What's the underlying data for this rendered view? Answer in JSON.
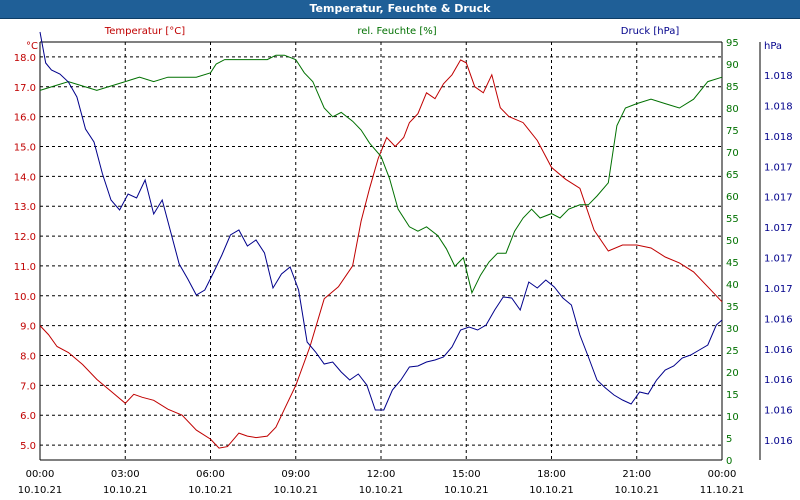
{
  "window": {
    "title": "Temperatur, Feuchte & Druck"
  },
  "chart_data": {
    "type": "line",
    "grid": true,
    "x_ticks": [
      {
        "time": "00:00",
        "date": "10.10.21"
      },
      {
        "time": "03:00",
        "date": "10.10.21"
      },
      {
        "time": "06:00",
        "date": "10.10.21"
      },
      {
        "time": "09:00",
        "date": "10.10.21"
      },
      {
        "time": "12:00",
        "date": "10.10.21"
      },
      {
        "time": "15:00",
        "date": "10.10.21"
      },
      {
        "time": "18:00",
        "date": "10.10.21"
      },
      {
        "time": "21:00",
        "date": "10.10.21"
      },
      {
        "time": "00:00",
        "date": "11.10.21"
      }
    ],
    "xlim_hours": [
      0,
      24
    ],
    "axes": {
      "temperature": {
        "unit": "°C",
        "ylim": [
          4.5,
          18.5
        ],
        "ticks": [
          "5.0",
          "6.0",
          "7.0",
          "8.0",
          "9.0",
          "10.0",
          "11.0",
          "12.0",
          "13.0",
          "14.0",
          "15.0",
          "16.0",
          "17.0",
          "18.0"
        ],
        "tick_values": [
          5,
          6,
          7,
          8,
          9,
          10,
          11,
          12,
          13,
          14,
          15,
          16,
          17,
          18
        ]
      },
      "humidity": {
        "unit": "%",
        "ylim": [
          0,
          95
        ],
        "ticks": [
          "0",
          "5",
          "10",
          "15",
          "20",
          "25",
          "30",
          "35",
          "40",
          "45",
          "50",
          "55",
          "60",
          "65",
          "70",
          "75",
          "80",
          "85",
          "90",
          "95"
        ],
        "tick_values": [
          0,
          5,
          10,
          15,
          20,
          25,
          30,
          35,
          40,
          45,
          50,
          55,
          60,
          65,
          70,
          75,
          80,
          85,
          90,
          95
        ]
      },
      "pressure": {
        "unit": "hPa",
        "ticks": [
          "1.018",
          "1.018",
          "1.018",
          "1.017",
          "1.017",
          "1.017",
          "1.017",
          "1.017",
          "1.016",
          "1.016",
          "1.016",
          "1.016",
          "1.016"
        ]
      }
    },
    "series": [
      {
        "name": "Temperatur [°C]",
        "axis": "temperature",
        "color": "#c00000",
        "x": [
          0,
          0.3,
          0.6,
          1.0,
          1.5,
          2.0,
          2.5,
          3.0,
          3.3,
          3.6,
          4.0,
          4.5,
          5.0,
          5.5,
          6.0,
          6.3,
          6.6,
          7.0,
          7.3,
          7.6,
          8.0,
          8.3,
          8.6,
          9.0,
          9.5,
          10.0,
          10.5,
          11.0,
          11.3,
          11.6,
          11.9,
          12.2,
          12.5,
          12.8,
          13.0,
          13.3,
          13.6,
          13.9,
          14.2,
          14.5,
          14.8,
          15.0,
          15.3,
          15.6,
          15.9,
          16.2,
          16.5,
          17.0,
          17.5,
          18.0,
          18.5,
          19.0,
          19.5,
          20.0,
          20.5,
          21.0,
          21.5,
          22.0,
          22.5,
          23.0,
          23.5,
          24.0
        ],
        "values": [
          9.0,
          8.7,
          8.3,
          8.1,
          7.7,
          7.2,
          6.8,
          6.4,
          6.7,
          6.6,
          6.5,
          6.2,
          6.0,
          5.5,
          5.2,
          4.9,
          4.95,
          5.4,
          5.3,
          5.25,
          5.3,
          5.6,
          6.2,
          7.0,
          8.3,
          9.9,
          10.3,
          11.0,
          12.5,
          13.6,
          14.6,
          15.3,
          15.0,
          15.3,
          15.8,
          16.1,
          16.8,
          16.6,
          17.1,
          17.4,
          17.9,
          17.8,
          17.0,
          16.8,
          17.4,
          16.3,
          16.0,
          15.8,
          15.2,
          14.3,
          13.9,
          13.6,
          12.2,
          11.5,
          11.7,
          11.7,
          11.6,
          11.3,
          11.1,
          10.8,
          10.3,
          9.8
        ]
      },
      {
        "name": "rel. Feuchte [%]",
        "axis": "humidity",
        "color": "#007000",
        "x": [
          0,
          0.5,
          1.0,
          1.5,
          2.0,
          2.5,
          3.0,
          3.5,
          4.0,
          4.5,
          5.0,
          5.5,
          6.0,
          6.2,
          6.5,
          7.0,
          7.5,
          8.0,
          8.3,
          8.6,
          9.0,
          9.3,
          9.6,
          10.0,
          10.3,
          10.6,
          11.0,
          11.3,
          11.6,
          12.0,
          12.3,
          12.6,
          13.0,
          13.3,
          13.6,
          14.0,
          14.3,
          14.6,
          14.9,
          15.2,
          15.5,
          15.8,
          16.1,
          16.4,
          16.7,
          17.0,
          17.3,
          17.6,
          18.0,
          18.3,
          18.6,
          19.0,
          19.3,
          19.6,
          20.0,
          20.3,
          20.6,
          21.0,
          21.5,
          22.0,
          22.5,
          23.0,
          23.5,
          24.0
        ],
        "values": [
          84,
          85,
          86,
          85,
          84,
          85,
          86,
          87,
          86,
          87,
          87,
          87,
          88,
          90,
          91,
          91,
          91,
          91,
          92,
          92,
          91,
          88,
          86,
          80,
          78,
          79,
          77,
          75,
          72,
          69,
          64,
          57,
          53,
          52,
          53,
          51,
          48,
          44,
          46,
          38,
          42,
          45,
          47,
          47,
          52,
          55,
          57,
          55,
          56,
          55,
          57,
          58,
          58,
          60,
          63,
          76,
          80,
          81,
          82,
          81,
          80,
          82,
          86,
          87
        ]
      },
      {
        "name": "Druck [hPa]",
        "axis": "pressure",
        "color": "#00008b",
        "x": [
          0,
          0.2,
          0.4,
          0.7,
          1.0,
          1.3,
          1.6,
          1.9,
          2.2,
          2.5,
          2.8,
          3.1,
          3.4,
          3.7,
          4.0,
          4.3,
          4.6,
          4.9,
          5.2,
          5.5,
          5.8,
          6.1,
          6.4,
          6.7,
          7.0,
          7.3,
          7.6,
          7.9,
          8.2,
          8.5,
          8.8,
          9.1,
          9.4,
          9.7,
          10.0,
          10.3,
          10.6,
          10.9,
          11.2,
          11.5,
          11.8,
          12.1,
          12.4,
          12.7,
          13.0,
          13.3,
          13.6,
          13.9,
          14.2,
          14.5,
          14.8,
          15.1,
          15.4,
          15.7,
          16.0,
          16.3,
          16.6,
          16.9,
          17.2,
          17.5,
          17.8,
          18.1,
          18.4,
          18.7,
          19.0,
          19.3,
          19.6,
          19.9,
          20.2,
          20.5,
          20.8,
          21.1,
          21.4,
          21.7,
          22.0,
          22.3,
          22.6,
          22.9,
          23.2,
          23.5,
          23.8,
          24.0
        ],
        "values": [
          428,
          397,
          390,
          386,
          378,
          363,
          331,
          318,
          286,
          260,
          250,
          266,
          262,
          280,
          246,
          260,
          228,
          196,
          181,
          165,
          170,
          187,
          205,
          225,
          230,
          214,
          220,
          207,
          172,
          186,
          193,
          170,
          118,
          108,
          96,
          98,
          88,
          80,
          86,
          75,
          50,
          50,
          70,
          80,
          93,
          94,
          98,
          100,
          103,
          113,
          130,
          133,
          130,
          135,
          150,
          163,
          162,
          150,
          178,
          172,
          180,
          173,
          162,
          155,
          125,
          103,
          80,
          72,
          65,
          60,
          56,
          68,
          66,
          80,
          90,
          94,
          102,
          105,
          110,
          115,
          135,
          140
        ]
      }
    ]
  }
}
